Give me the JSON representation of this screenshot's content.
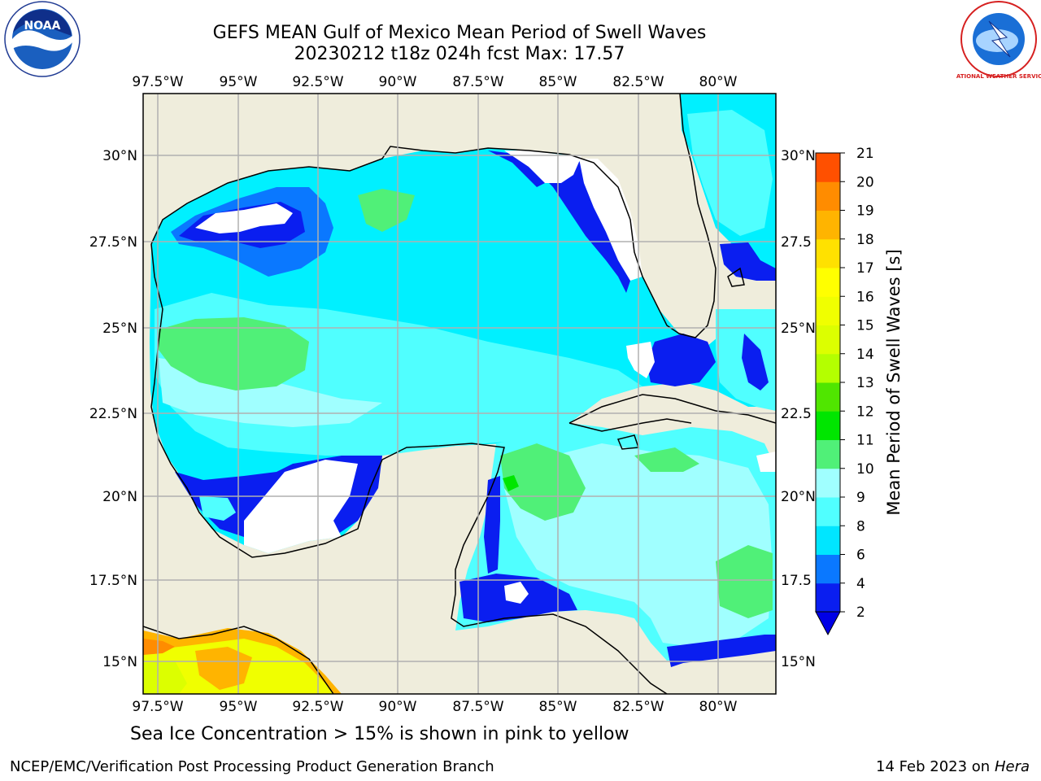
{
  "header": {
    "title_line1": "GEFS MEAN Gulf of Mexico Mean Period of Swell Waves",
    "title_line2": "20230212 t18z 024h fcst   Max: 17.57"
  },
  "logos": {
    "left": "NOAA",
    "right_name": "NATIONAL WEATHER SERVICE"
  },
  "map": {
    "lon_labels": [
      "97.5°W",
      "95°W",
      "92.5°W",
      "90°W",
      "87.5°W",
      "85°W",
      "82.5°W",
      "80°W"
    ],
    "lat_labels_left": [
      "30°N",
      "27.5°N",
      "25°N",
      "22.5°N",
      "20°N",
      "17.5°N",
      "15°N"
    ],
    "lat_labels_right": [
      "30°N",
      "27.5",
      "25°N",
      "22.5",
      "20°N",
      "17.5",
      "15°N"
    ]
  },
  "colorbar": {
    "label": "Mean Period of Swell Waves [s]",
    "ticks": [
      "2",
      "4",
      "6",
      "8",
      "9",
      "10",
      "11",
      "12",
      "13",
      "14",
      "15",
      "16",
      "17",
      "18",
      "19",
      "20",
      "21"
    ],
    "colors": [
      "#0a1ef0",
      "#0a78ff",
      "#00e6ff",
      "#50ffff",
      "#a0ffff",
      "#50f078",
      "#00e600",
      "#50e600",
      "#b4ff00",
      "#dcff00",
      "#f0ff00",
      "#ffff00",
      "#ffe100",
      "#ffb400",
      "#ff8c00",
      "#ff5000",
      "#ff2800",
      "#ff0000"
    ],
    "extend_color": "#0000e6"
  },
  "caption": "Sea Ice Concentration > 15% is shown in pink to yellow",
  "footer": {
    "left": "NCEP/EMC/Verification Post Processing Product Generation Branch",
    "right_date": "14 Feb 2023 on",
    "right_host": "Hera"
  }
}
